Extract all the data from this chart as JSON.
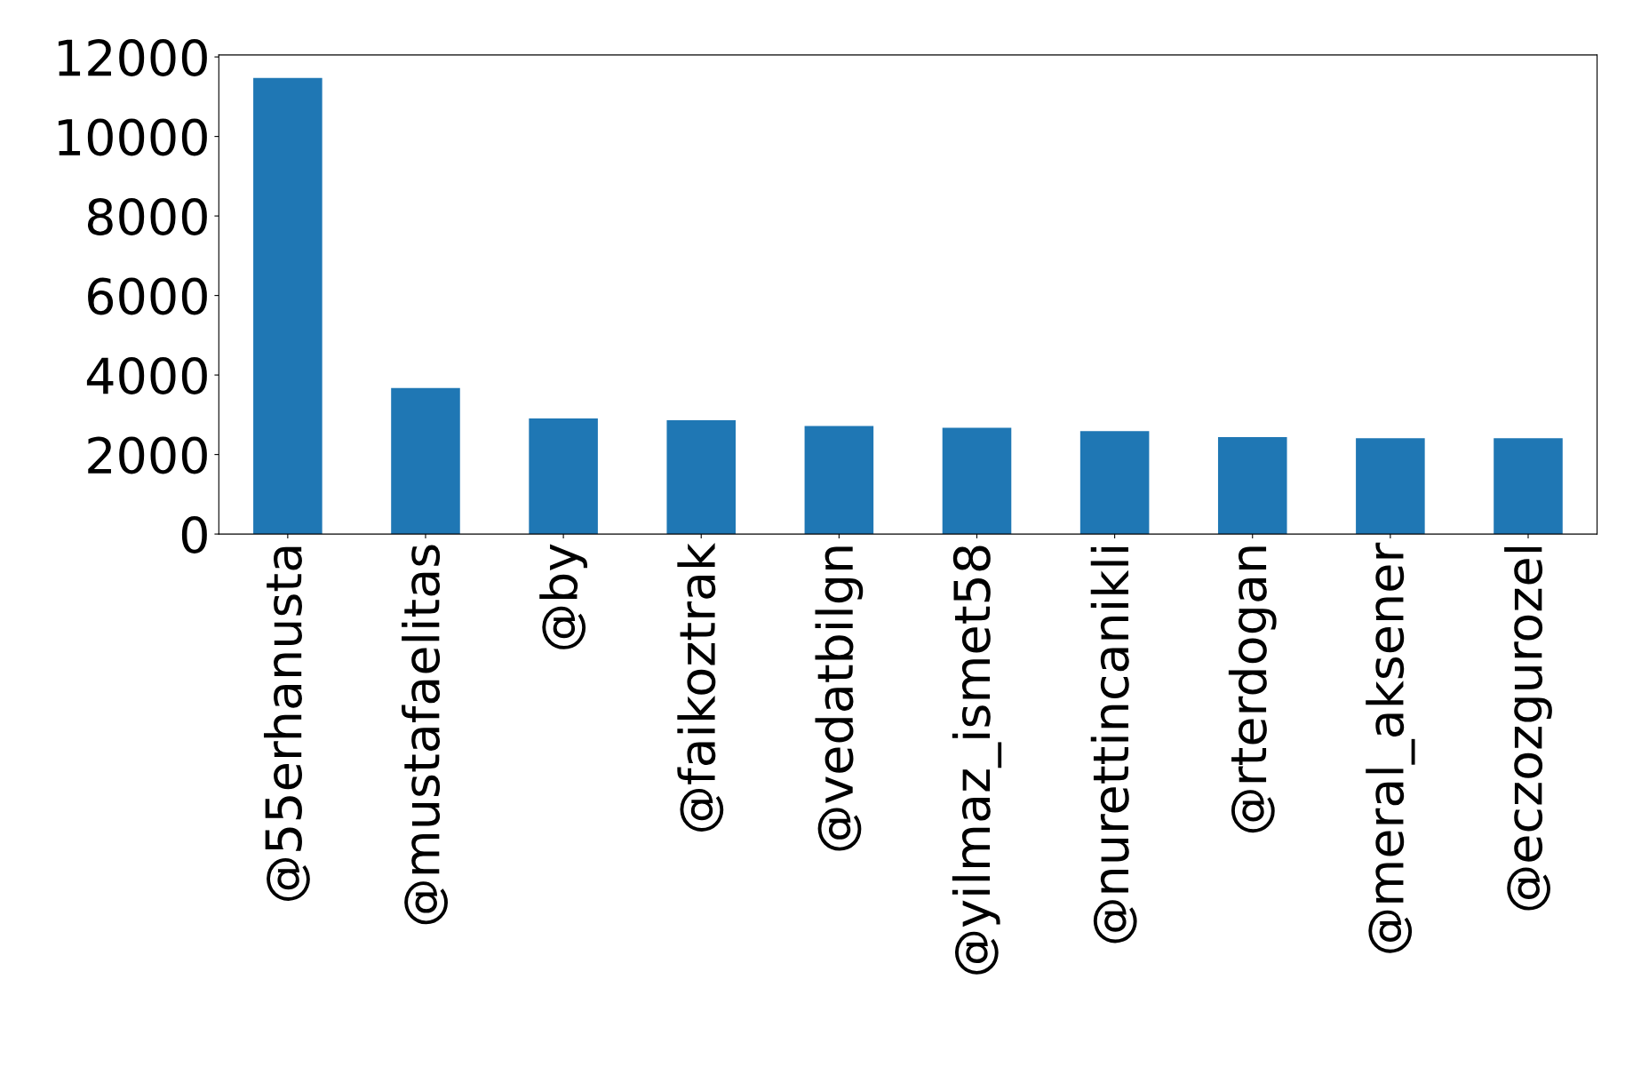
{
  "chart_data": {
    "type": "bar",
    "categories": [
      "@55erhanusta",
      "@mustafaelitas",
      "@by",
      "@faikoztrak",
      "@vedatbilgn",
      "@yilmaz_ismet58",
      "@nurettincanikli",
      "@rterdogan",
      "@meral_aksener",
      "@eczozgurozel"
    ],
    "values": [
      11470,
      3670,
      2910,
      2860,
      2720,
      2670,
      2590,
      2440,
      2410,
      2410
    ],
    "color": "#1f77b4",
    "ylim": [
      0,
      12050
    ],
    "yticks": [
      0,
      2000,
      4000,
      6000,
      8000,
      10000,
      12000
    ],
    "grid": false,
    "legend": false
  }
}
